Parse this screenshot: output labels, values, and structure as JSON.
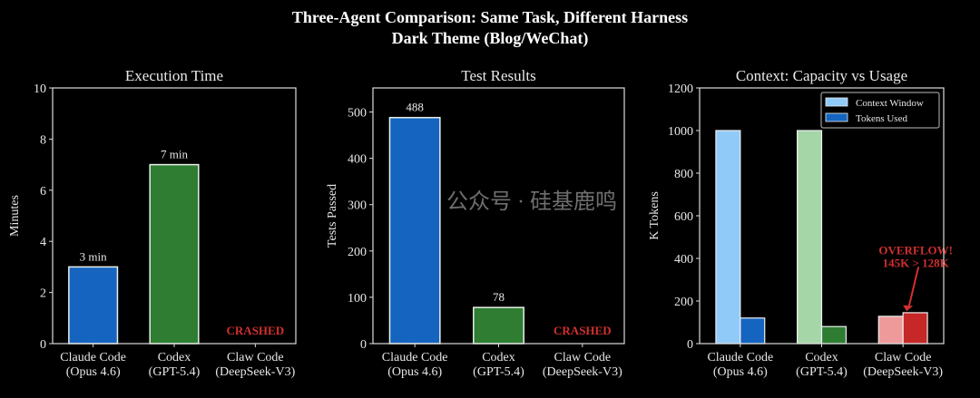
{
  "title_line1": "Three-Agent Comparison: Same Task, Different Harness",
  "title_line2": "Dark Theme (Blog/WeChat)",
  "watermark": "公众号 · 硅基鹿鸣",
  "chart_data": [
    {
      "type": "bar",
      "title": "Execution Time",
      "ylabel": "Minutes",
      "xlabel": "",
      "categories": [
        [
          "Claude Code",
          "(Opus 4.6)"
        ],
        [
          "Codex",
          "(GPT-5.4)"
        ],
        [
          "Claw Code",
          "(DeepSeek-V3)"
        ]
      ],
      "values": [
        3,
        7,
        null
      ],
      "data_labels": [
        "3 min",
        "7 min",
        "CRASHED"
      ],
      "colors": [
        "#1565c0",
        "#2e7d32",
        "#c62828"
      ],
      "ylim": [
        0,
        10
      ],
      "yticks": [
        0,
        2,
        4,
        6,
        8,
        10
      ]
    },
    {
      "type": "bar",
      "title": "Test Results",
      "ylabel": "Tests Passed",
      "xlabel": "",
      "categories": [
        [
          "Claude Code",
          "(Opus 4.6)"
        ],
        [
          "Codex",
          "(GPT-5.4)"
        ],
        [
          "Claw Code",
          "(DeepSeek-V3)"
        ]
      ],
      "values": [
        488,
        78,
        null
      ],
      "data_labels": [
        "488",
        "78",
        "CRASHED"
      ],
      "colors": [
        "#1565c0",
        "#2e7d32",
        "#c62828"
      ],
      "ylim": [
        0,
        552
      ],
      "yticks": [
        0,
        100,
        200,
        300,
        400,
        500
      ]
    },
    {
      "type": "bar",
      "title": "Context: Capacity vs Usage",
      "ylabel": "K Tokens",
      "xlabel": "",
      "categories": [
        [
          "Claude Code",
          "(Opus 4.6)"
        ],
        [
          "Codex",
          "(GPT-5.4)"
        ],
        [
          "Claw Code",
          "(DeepSeek-V3)"
        ]
      ],
      "series": [
        {
          "name": "Context Window",
          "values": [
            1000,
            1000,
            128
          ],
          "colors": [
            "#90caf9",
            "#a5d6a7",
            "#ef9a9a"
          ]
        },
        {
          "name": "Tokens Used",
          "values": [
            120,
            80,
            145
          ],
          "colors": [
            "#1565c0",
            "#2e7d32",
            "#c62828"
          ]
        }
      ],
      "legend_position": "top-right",
      "annotation": [
        "OVERFLOW!",
        "145K > 128K"
      ],
      "ylim": [
        0,
        1200
      ],
      "yticks": [
        0,
        200,
        400,
        600,
        800,
        1000,
        1200
      ]
    }
  ]
}
